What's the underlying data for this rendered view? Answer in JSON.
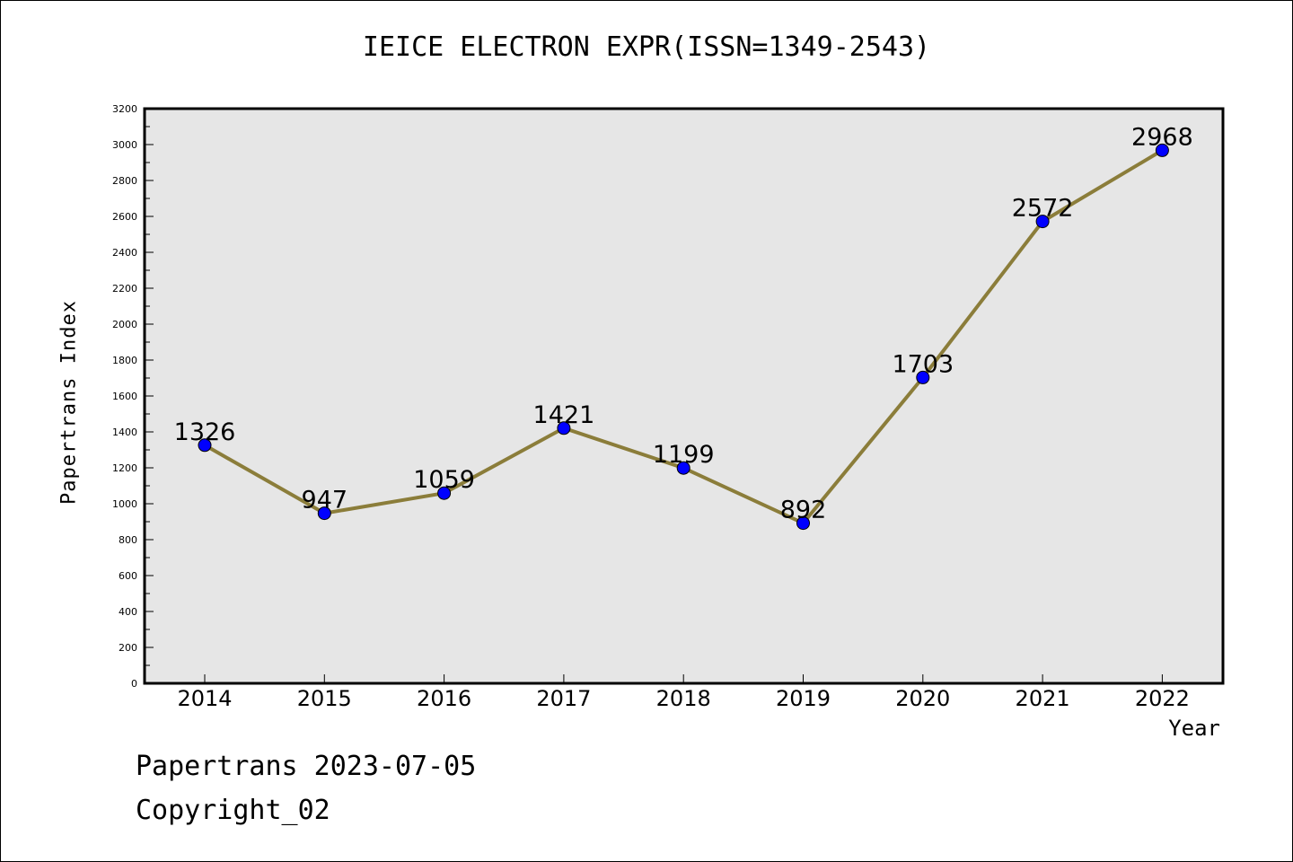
{
  "chart_data": {
    "type": "line",
    "title": "IEICE ELECTRON EXPR(ISSN=1349-2543)",
    "xlabel": "Year",
    "ylabel": "Papertrans Index",
    "categories": [
      "2014",
      "2015",
      "2016",
      "2017",
      "2018",
      "2019",
      "2020",
      "2021",
      "2022"
    ],
    "series": [
      {
        "values": [
          1326,
          947,
          1059,
          1421,
          1199,
          892,
          1703,
          2572,
          2968
        ]
      }
    ],
    "ylim": [
      0,
      3200
    ],
    "yticks": [
      "0",
      "200",
      "400",
      "600",
      "800",
      "1000",
      "1200",
      "1400",
      "1600",
      "1800",
      "2000",
      "2200",
      "2400",
      "2600",
      "2800",
      "3000",
      "3200"
    ],
    "data_labels": [
      "1326",
      "947",
      "1059",
      "1421",
      "1199",
      "892",
      "1703",
      "2572",
      "2968"
    ],
    "grid": false,
    "colors": {
      "line": "#8b7d3a",
      "marker": "#0000ff",
      "plot_background": "#e6e6e6"
    }
  },
  "footer": {
    "date_text": "Papertrans 2023-07-05",
    "copyright_text": "Copyright_02"
  }
}
